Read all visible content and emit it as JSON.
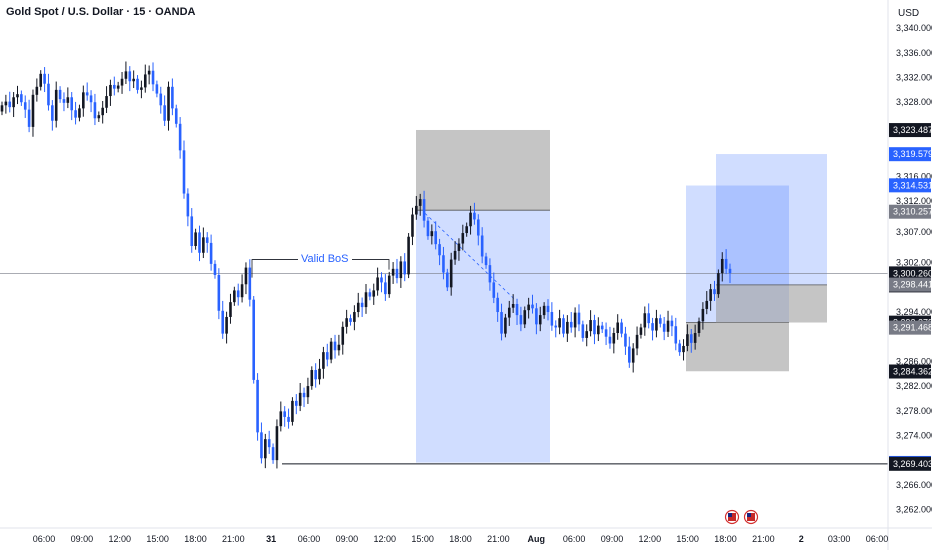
{
  "header": {
    "symbol_title": "Gold Spot / U.S. Dollar · 15 · OANDA",
    "currency": "USD"
  },
  "colors": {
    "up": "#131722",
    "down": "#2962ff",
    "zone_blue": "#2962ff",
    "zone_grey": "#9e9e9e",
    "bos_line": "#131722",
    "low_line": "#131722"
  },
  "chart_data": {
    "type": "candlestick",
    "title": "Gold Spot / U.S. Dollar · 15 · OANDA",
    "ylabel": "USD",
    "ylim": [
      3259,
      3341
    ],
    "price_ticks": [
      "3,340.000",
      "3,336.000",
      "3,332.000",
      "3,328.000",
      "3,323.487",
      "3,319.579",
      "3,316.000",
      "3,314.531",
      "3,312.000",
      "3,310.257",
      "3,307.000",
      "3,302.000",
      "3,300.260",
      "03:33",
      "3,298.441",
      "3,294.000",
      "3,292.279",
      "3,291.468",
      "3,286.000",
      "3,284.362",
      "3,282.000",
      "3,278.000",
      "3,274.000",
      "3,269.541",
      "3,269.403",
      "3,266.000",
      "3,262.000"
    ],
    "price_tick_values": [
      3340,
      3336,
      3332,
      3328,
      3323.487,
      3319.579,
      3316,
      3314.531,
      3312,
      3310.257,
      3307,
      3302,
      3300.26,
      3300.26,
      3298.441,
      3294,
      3292.279,
      3291.468,
      3286,
      3284.362,
      3282,
      3278,
      3274,
      3269.541,
      3269.403,
      3266,
      3262
    ],
    "x_ticks": [
      "06:00",
      "09:00",
      "12:00",
      "15:00",
      "18:00",
      "21:00",
      "31",
      "06:00",
      "09:00",
      "12:00",
      "15:00",
      "18:00",
      "21:00",
      "Aug",
      "06:00",
      "09:00",
      "12:00",
      "15:00",
      "18:00",
      "21:00",
      "2",
      "03:00",
      "06:00"
    ],
    "price_tags": [
      {
        "label": "3,323.487",
        "value": 3323.487,
        "style": "dark"
      },
      {
        "label": "3,319.579",
        "value": 3319.579,
        "style": "blue"
      },
      {
        "label": "3,314.531",
        "value": 3314.531,
        "style": "blue"
      },
      {
        "label": "3,310.257",
        "value": 3310.257,
        "style": "grey"
      },
      {
        "label": "3,300.260",
        "value": 3300.26,
        "style": "dark"
      },
      {
        "label": "3,298.441",
        "value": 3298.441,
        "style": "grey"
      },
      {
        "label": "3,292.279",
        "value": 3292.279,
        "style": "dark"
      },
      {
        "label": "3,291.468",
        "value": 3291.468,
        "style": "grey"
      },
      {
        "label": "3,284.362",
        "value": 3284.362,
        "style": "dark"
      },
      {
        "label": "3,269.541",
        "value": 3269.541,
        "style": "blue"
      },
      {
        "label": "3,269.403",
        "value": 3269.403,
        "style": "dark"
      }
    ],
    "countdown": "03:33",
    "last_price": 3300.26,
    "annotations": [
      {
        "text": "Valid BoS",
        "level": 3302.5
      }
    ],
    "positions": [
      {
        "name": "short-1",
        "entry": 3310.5,
        "stop": 3323.5,
        "target": 3269.6
      },
      {
        "name": "long-1",
        "entry": 3292.3,
        "stop": 3284.4,
        "target": 3314.5
      },
      {
        "name": "long-2",
        "entry": 3298.4,
        "stop": 3292.3,
        "target": 3319.6
      }
    ],
    "support_level": 3269.4,
    "closes": [
      3327.5,
      3328.1,
      3327.2,
      3328.8,
      3329.3,
      3328.0,
      3326.8,
      3324.0,
      3329.2,
      3330.5,
      3332.6,
      3331.0,
      3327.5,
      3325.0,
      3330.0,
      3328.5,
      3327.9,
      3328.8,
      3326.7,
      3325.5,
      3327.0,
      3329.6,
      3329.1,
      3328.0,
      3325.4,
      3325.9,
      3327.1,
      3329.0,
      3330.8,
      3330.2,
      3330.7,
      3331.8,
      3333.0,
      3331.4,
      3331.8,
      3330.0,
      3330.4,
      3332.5,
      3333.1,
      3330.9,
      3329.4,
      3327.5,
      3325.0,
      3330.5,
      3327.0,
      3324.5,
      3320.2,
      3313.2,
      3309.5,
      3304.7,
      3306.9,
      3303.6,
      3306.1,
      3305.2,
      3301.8,
      3300.0,
      3294.2,
      3290.5,
      3293.2,
      3295.6,
      3297.5,
      3296.4,
      3298.5,
      3301.2,
      3296.0,
      3283.0,
      3274.5,
      3270.3,
      3273.4,
      3272.1,
      3270.0,
      3275.5,
      3277.9,
      3277.0,
      3276.2,
      3279.6,
      3278.8,
      3280.9,
      3280.2,
      3282.0,
      3284.6,
      3283.1,
      3284.8,
      3287.5,
      3286.3,
      3289.2,
      3287.8,
      3288.7,
      3291.6,
      3293.0,
      3292.4,
      3294.0,
      3295.5,
      3294.8,
      3297.2,
      3296.5,
      3297.5,
      3299.6,
      3298.8,
      3296.9,
      3299.9,
      3301.0,
      3299.5,
      3302.2,
      3300.1,
      3306.2,
      3309.8,
      3311.2,
      3312.3,
      3308.8,
      3306.3,
      3307.1,
      3305.0,
      3303.2,
      3300.4,
      3298.0,
      3302.5,
      3303.9,
      3305.1,
      3306.8,
      3307.9,
      3310.1,
      3309.0,
      3306.4,
      3303.0,
      3301.6,
      3298.8,
      3296.3,
      3294.0,
      3290.5,
      3293.1,
      3294.7,
      3295.3,
      3293.5,
      3292.0,
      3294.3,
      3295.2,
      3294.6,
      3292.0,
      3293.5,
      3295.0,
      3294.0,
      3291.8,
      3291.5,
      3293.0,
      3290.5,
      3292.4,
      3291.5,
      3293.9,
      3292.0,
      3289.8,
      3290.9,
      3292.7,
      3290.4,
      3291.8,
      3291.2,
      3290.0,
      3288.9,
      3290.6,
      3292.3,
      3290.5,
      3288.4,
      3285.8,
      3288.1,
      3290.3,
      3291.5,
      3293.8,
      3292.2,
      3291.0,
      3293.0,
      3292.1,
      3290.8,
      3292.6,
      3291.7,
      3288.9,
      3287.5,
      3288.5,
      3290.4,
      3289.0,
      3290.6,
      3292.5,
      3294.5,
      3295.8,
      3297.7,
      3296.9,
      3300.3,
      3302.6,
      3301.0,
      3300.3
    ]
  },
  "candle_meta": {
    "seed_start": 3326.5
  }
}
